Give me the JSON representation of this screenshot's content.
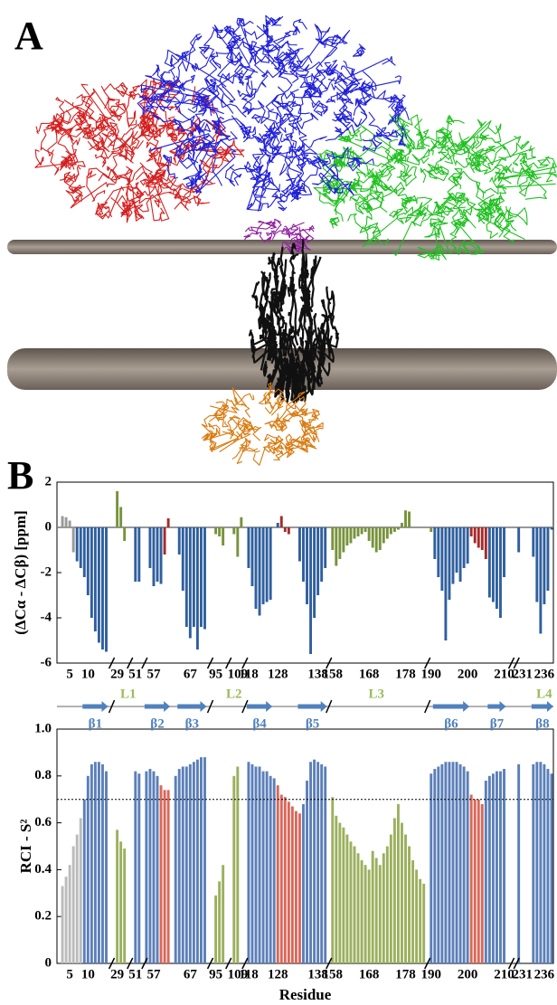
{
  "panel_labels": [
    "A",
    "B"
  ],
  "secondary_structure": {
    "strands": [
      "β1",
      "β2",
      "β3",
      "β4",
      "β5",
      "β6",
      "β7",
      "β8"
    ],
    "loops": [
      "L1",
      "L2",
      "L3",
      "L4"
    ]
  },
  "chart_data": [
    {
      "type": "bar",
      "y_label": "(ΔCα - ΔCβ) [ppm]",
      "ylim": [
        -6,
        2
      ],
      "yticks": [
        -6,
        -4,
        -2,
        0,
        2
      ],
      "categories": [
        null,
        null,
        null,
        "5",
        null,
        null,
        null,
        null,
        "10",
        null,
        null,
        null,
        null,
        null,
        null,
        null,
        "29",
        null,
        null,
        null,
        null,
        "51",
        null,
        null,
        null,
        null,
        "57",
        null,
        null,
        null,
        null,
        null,
        null,
        null,
        null,
        null,
        "67",
        null,
        null,
        null,
        null,
        null,
        null,
        "95",
        null,
        null,
        null,
        null,
        null,
        "109",
        null,
        null,
        "118",
        null,
        null,
        null,
        null,
        null,
        null,
        null,
        "128",
        null,
        null,
        null,
        null,
        null,
        null,
        null,
        null,
        null,
        null,
        "138",
        null,
        null,
        null,
        "158",
        null,
        null,
        null,
        null,
        null,
        null,
        null,
        null,
        null,
        "168",
        null,
        null,
        null,
        null,
        null,
        null,
        null,
        null,
        null,
        "178",
        null,
        null,
        null,
        null,
        null,
        null,
        "190",
        null,
        null,
        null,
        null,
        null,
        null,
        null,
        null,
        null,
        "200",
        null,
        null,
        null,
        null,
        null,
        null,
        null,
        null,
        null,
        "210",
        null,
        null,
        null,
        null,
        "231",
        null,
        null,
        null,
        null,
        null,
        "236",
        null,
        null
      ],
      "values": [
        null,
        0.5,
        0.45,
        0.3,
        -1.1,
        -1.5,
        -1.8,
        -2.2,
        -3,
        -4,
        -4.6,
        -5.1,
        -5.4,
        -5.5,
        null,
        null,
        1.6,
        0.9,
        -0.6,
        null,
        null,
        -2.4,
        -2.4,
        null,
        null,
        -1.8,
        -2.6,
        -2.4,
        -2.5,
        -1.2,
        0.4,
        null,
        null,
        -1.2,
        -2.8,
        -4.4,
        -4.9,
        -4.4,
        -5.4,
        -4.4,
        -4.5,
        null,
        null,
        -0.3,
        -0.4,
        -0.8,
        null,
        null,
        -0.3,
        -1.3,
        0.45,
        null,
        -1.8,
        -2.6,
        -3.6,
        -3.9,
        -3.4,
        -3.3,
        -3.2,
        null,
        0.2,
        0.5,
        -0.2,
        -0.3,
        null,
        null,
        -1.5,
        -2.4,
        -3.4,
        -5.6,
        -4,
        -3,
        -2.4,
        -1.8,
        null,
        -1,
        -1.7,
        -1.4,
        -1.1,
        -0.8,
        -0.7,
        -0.5,
        -0.4,
        -0.3,
        -0.2,
        -0.6,
        -0.9,
        -1.1,
        -1,
        -0.7,
        -0.5,
        -0.3,
        -0.2,
        -0.1,
        0.2,
        0.75,
        0.7,
        null,
        null,
        null,
        null,
        null,
        -0.2,
        -1.4,
        -2.2,
        -2.8,
        -5,
        -3.2,
        -2.5,
        -2,
        -2.4,
        -1.8,
        -1.6,
        -0.4,
        -0.7,
        -0.9,
        -1,
        -1.4,
        -3.1,
        -3.3,
        -3.6,
        -4,
        -2.2,
        null,
        null,
        null,
        -1.1,
        null,
        null,
        null,
        -1.3,
        -3.3,
        -4.7,
        -3.4,
        -2.8,
        -0.1
      ],
      "colors": [
        null,
        "#999999",
        "#999999",
        "#999999",
        "#999999",
        "#2f5f9e",
        "#2f5f9e",
        "#2f5f9e",
        "#2f5f9e",
        "#2f5f9e",
        "#2f5f9e",
        "#2f5f9e",
        "#2f5f9e",
        "#2f5f9e",
        null,
        null,
        "#77933c",
        "#77933c",
        "#77933c",
        null,
        null,
        "#2f5f9e",
        "#2f5f9e",
        null,
        null,
        "#2f5f9e",
        "#2f5f9e",
        "#2f5f9e",
        "#2f5f9e",
        "#a52a2a",
        "#a52a2a",
        null,
        null,
        "#2f5f9e",
        "#2f5f9e",
        "#2f5f9e",
        "#2f5f9e",
        "#2f5f9e",
        "#2f5f9e",
        "#2f5f9e",
        "#2f5f9e",
        null,
        null,
        "#77933c",
        "#77933c",
        "#77933c",
        null,
        null,
        "#77933c",
        "#77933c",
        "#77933c",
        null,
        "#2f5f9e",
        "#2f5f9e",
        "#2f5f9e",
        "#2f5f9e",
        "#2f5f9e",
        "#2f5f9e",
        "#2f5f9e",
        null,
        "#2f5f9e",
        "#a52a2a",
        "#a52a2a",
        "#a52a2a",
        null,
        null,
        "#2f5f9e",
        "#2f5f9e",
        "#2f5f9e",
        "#2f5f9e",
        "#2f5f9e",
        "#2f5f9e",
        "#2f5f9e",
        "#2f5f9e",
        null,
        "#77933c",
        "#77933c",
        "#77933c",
        "#77933c",
        "#77933c",
        "#77933c",
        "#77933c",
        "#77933c",
        "#77933c",
        "#77933c",
        "#77933c",
        "#77933c",
        "#77933c",
        "#77933c",
        "#77933c",
        "#77933c",
        "#77933c",
        "#77933c",
        "#77933c",
        "#77933c",
        "#77933c",
        "#77933c",
        null,
        null,
        null,
        null,
        null,
        "#77933c",
        "#2f5f9e",
        "#2f5f9e",
        "#2f5f9e",
        "#2f5f9e",
        "#2f5f9e",
        "#2f5f9e",
        "#2f5f9e",
        "#2f5f9e",
        "#2f5f9e",
        "#2f5f9e",
        "#a52a2a",
        "#a52a2a",
        "#a52a2a",
        "#a52a2a",
        "#a52a2a",
        "#2f5f9e",
        "#2f5f9e",
        "#2f5f9e",
        "#2f5f9e",
        "#2f5f9e",
        null,
        null,
        null,
        "#2f5f9e",
        null,
        null,
        null,
        "#2f5f9e",
        "#2f5f9e",
        "#2f5f9e",
        "#2f5f9e",
        "#2f5f9e",
        "#2f5f9e"
      ]
    },
    {
      "type": "bar",
      "y_label": "RCI - S²",
      "x_label": "Residue",
      "ylim": [
        0,
        1
      ],
      "yticks": [
        0,
        0.2,
        0.4,
        0.6,
        0.8,
        {
          "value": 1,
          "label": "1.0"
        }
      ],
      "reference_line": 0.7,
      "categories": [
        null,
        null,
        null,
        "5",
        null,
        null,
        null,
        null,
        "10",
        null,
        null,
        null,
        null,
        null,
        null,
        null,
        "29",
        null,
        null,
        null,
        null,
        "51",
        null,
        null,
        null,
        null,
        "57",
        null,
        null,
        null,
        null,
        null,
        null,
        null,
        null,
        null,
        "67",
        null,
        null,
        null,
        null,
        null,
        null,
        "95",
        null,
        null,
        null,
        null,
        null,
        "109",
        null,
        null,
        "118",
        null,
        null,
        null,
        null,
        null,
        null,
        null,
        "128",
        null,
        null,
        null,
        null,
        null,
        null,
        null,
        null,
        null,
        null,
        "138",
        null,
        null,
        null,
        "158",
        null,
        null,
        null,
        null,
        null,
        null,
        null,
        null,
        null,
        "168",
        null,
        null,
        null,
        null,
        null,
        null,
        null,
        null,
        null,
        "178",
        null,
        null,
        null,
        null,
        null,
        null,
        "190",
        null,
        null,
        null,
        null,
        null,
        null,
        null,
        null,
        null,
        "200",
        null,
        null,
        null,
        null,
        null,
        null,
        null,
        null,
        null,
        "210",
        null,
        null,
        null,
        null,
        "231",
        null,
        null,
        null,
        null,
        null,
        "236",
        null,
        null
      ],
      "values": [
        null,
        0.33,
        0.37,
        0.42,
        0.5,
        0.55,
        0.62,
        0.7,
        0.8,
        0.85,
        0.86,
        0.86,
        0.85,
        0.82,
        null,
        null,
        0.57,
        0.52,
        0.49,
        null,
        null,
        0.82,
        0.81,
        null,
        0.82,
        0.83,
        0.82,
        0.8,
        0.76,
        0.74,
        0.74,
        null,
        0.8,
        0.83,
        0.84,
        0.84,
        0.85,
        0.86,
        0.87,
        0.88,
        0.88,
        null,
        null,
        0.29,
        0.35,
        0.42,
        null,
        null,
        0.8,
        0.84,
        null,
        null,
        0.86,
        0.85,
        0.84,
        0.84,
        0.82,
        0.82,
        0.8,
        0.79,
        0.76,
        0.72,
        0.71,
        0.69,
        0.67,
        0.65,
        0.64,
        0.68,
        0.78,
        0.86,
        0.87,
        0.86,
        0.85,
        0.84,
        null,
        0.71,
        0.63,
        0.6,
        0.58,
        0.55,
        0.52,
        0.5,
        0.47,
        0.44,
        0.42,
        0.4,
        0.48,
        0.45,
        0.42,
        0.47,
        0.5,
        0.55,
        0.62,
        0.68,
        0.6,
        0.55,
        0.5,
        0.44,
        0.4,
        0.36,
        0.34,
        null,
        0.81,
        0.83,
        0.84,
        0.85,
        0.86,
        0.86,
        0.86,
        0.86,
        0.85,
        0.84,
        0.82,
        0.72,
        0.7,
        0.7,
        0.68,
        0.78,
        0.8,
        0.81,
        0.82,
        0.82,
        0.83,
        null,
        null,
        null,
        0.85,
        null,
        null,
        null,
        0.85,
        0.86,
        0.86,
        0.85,
        0.83,
        0.81
      ],
      "colors": [
        null,
        "#bbbbbb",
        "#bbbbbb",
        "#bbbbbb",
        "#bbbbbb",
        "#bbbbbb",
        "#bbbbbb",
        "#5b7fb8",
        "#5b7fb8",
        "#5b7fb8",
        "#5b7fb8",
        "#5b7fb8",
        "#5b7fb8",
        "#5b7fb8",
        null,
        null,
        "#9bb05e",
        "#9bb05e",
        "#9bb05e",
        null,
        null,
        "#5b7fb8",
        "#5b7fb8",
        null,
        "#5b7fb8",
        "#5b7fb8",
        "#5b7fb8",
        "#5b7fb8",
        "#d9675a",
        "#d9675a",
        "#d9675a",
        null,
        "#5b7fb8",
        "#5b7fb8",
        "#5b7fb8",
        "#5b7fb8",
        "#5b7fb8",
        "#5b7fb8",
        "#5b7fb8",
        "#5b7fb8",
        "#5b7fb8",
        null,
        null,
        "#9bb05e",
        "#9bb05e",
        "#9bb05e",
        null,
        null,
        "#9bb05e",
        "#9bb05e",
        null,
        null,
        "#5b7fb8",
        "#5b7fb8",
        "#5b7fb8",
        "#5b7fb8",
        "#5b7fb8",
        "#5b7fb8",
        "#5b7fb8",
        "#5b7fb8",
        "#d9675a",
        "#d9675a",
        "#d9675a",
        "#d9675a",
        "#d9675a",
        "#d9675a",
        "#d9675a",
        "#5b7fb8",
        "#5b7fb8",
        "#5b7fb8",
        "#5b7fb8",
        "#5b7fb8",
        "#5b7fb8",
        "#5b7fb8",
        null,
        "#9bb05e",
        "#9bb05e",
        "#9bb05e",
        "#9bb05e",
        "#9bb05e",
        "#9bb05e",
        "#9bb05e",
        "#9bb05e",
        "#9bb05e",
        "#9bb05e",
        "#9bb05e",
        "#9bb05e",
        "#9bb05e",
        "#9bb05e",
        "#9bb05e",
        "#9bb05e",
        "#9bb05e",
        "#9bb05e",
        "#9bb05e",
        "#9bb05e",
        "#9bb05e",
        "#9bb05e",
        "#9bb05e",
        "#9bb05e",
        "#9bb05e",
        "#9bb05e",
        null,
        "#5b7fb8",
        "#5b7fb8",
        "#5b7fb8",
        "#5b7fb8",
        "#5b7fb8",
        "#5b7fb8",
        "#5b7fb8",
        "#5b7fb8",
        "#5b7fb8",
        "#5b7fb8",
        "#5b7fb8",
        "#d9675a",
        "#d9675a",
        "#d9675a",
        "#d9675a",
        "#5b7fb8",
        "#5b7fb8",
        "#5b7fb8",
        "#5b7fb8",
        "#5b7fb8",
        "#5b7fb8",
        null,
        null,
        null,
        "#5b7fb8",
        null,
        null,
        null,
        "#5b7fb8",
        "#5b7fb8",
        "#5b7fb8",
        "#5b7fb8",
        "#5b7fb8",
        "#5b7fb8"
      ]
    }
  ]
}
